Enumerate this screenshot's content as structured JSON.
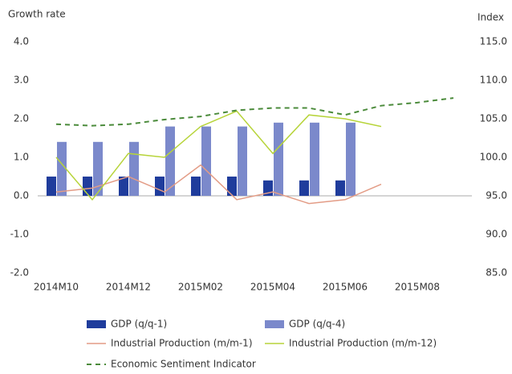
{
  "chart_data": {
    "type": "combo",
    "y_label": "Growth rate",
    "y2_label": "Index",
    "categories": [
      "2014M10",
      null,
      "2014M12",
      null,
      "2015M02",
      null,
      "2015M04",
      null,
      "2015M06",
      null,
      "2015M08",
      null
    ],
    "ylim": [
      -2,
      4
    ],
    "yticks": [
      {
        "value": -2,
        "label": "-2.0"
      },
      {
        "value": -1,
        "label": "-1.0"
      },
      {
        "value": 0,
        "label": "0.0"
      },
      {
        "value": 1,
        "label": "1.0"
      },
      {
        "value": 2,
        "label": "2.0"
      },
      {
        "value": 3,
        "label": "3.0"
      },
      {
        "value": 4,
        "label": "4.0"
      }
    ],
    "y2lim": [
      85,
      115
    ],
    "y2ticks": [
      {
        "value": 85,
        "label": "85.0"
      },
      {
        "value": 90,
        "label": "90.0"
      },
      {
        "value": 95,
        "label": "95.0"
      },
      {
        "value": 100,
        "label": "100.0"
      },
      {
        "value": 105,
        "label": "105.0"
      },
      {
        "value": 110,
        "label": "110.0"
      },
      {
        "value": 115,
        "label": "115.0"
      }
    ],
    "series": [
      {
        "name": "GDP (q/q-1)",
        "type": "bar",
        "color": "#1f3c9c",
        "values": [
          0.5,
          0.5,
          0.5,
          0.5,
          0.5,
          0.5,
          0.4,
          0.4,
          0.4,
          null,
          null,
          null
        ]
      },
      {
        "name": "GDP (q/q-4)",
        "type": "bar",
        "color": "#7b89cb",
        "values": [
          1.4,
          1.4,
          1.4,
          1.8,
          1.8,
          1.8,
          1.9,
          1.9,
          1.9,
          null,
          null,
          null
        ]
      },
      {
        "name": "Industrial Production (m/m-1)",
        "type": "line",
        "color": "#e39c86",
        "values": [
          0.1,
          0.2,
          0.5,
          0.1,
          0.8,
          -0.1,
          0.1,
          -0.2,
          -0.1,
          0.3,
          null,
          null
        ]
      },
      {
        "name": "Industrial Production (m/m-12)",
        "type": "line",
        "color": "#b7d43a",
        "values": [
          1.0,
          -0.1,
          1.1,
          1.0,
          1.8,
          2.2,
          1.1,
          2.1,
          2.0,
          1.8,
          null,
          null
        ]
      },
      {
        "name": "Economic Sentiment Indicator",
        "type": "line",
        "dashed": true,
        "axis": "y2",
        "color": "#4b8b3b",
        "values": [
          104.3,
          104.1,
          104.3,
          104.9,
          105.3,
          106.1,
          106.4,
          106.4,
          105.5,
          106.7,
          107.1,
          107.7
        ]
      }
    ]
  }
}
